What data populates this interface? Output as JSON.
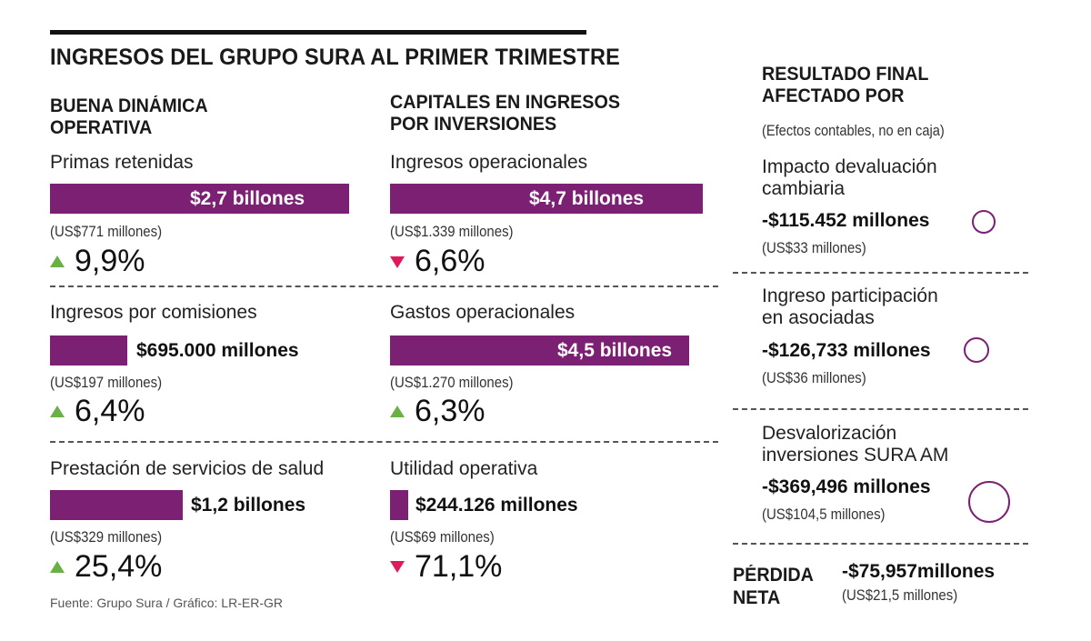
{
  "title": "INGRESOS DEL GRUPO SURA AL PRIMER TRIMESTRE",
  "sections": {
    "left": {
      "heading": [
        "BUENA DINÁMICA",
        "OPERATIVA"
      ]
    },
    "middle": {
      "heading": [
        "CAPITALES EN INGRESOS",
        "POR INVERSIONES"
      ]
    },
    "right": {
      "heading": [
        "RESULTADO FINAL",
        "AFECTADO POR"
      ],
      "note": "(Efectos contables, no en caja)"
    }
  },
  "metrics": {
    "primas": {
      "label": "Primas retenidas",
      "value": "$2,7 billones",
      "usd": "(US$771 millones)",
      "change": "9,9%",
      "direction": "up"
    },
    "comisiones": {
      "label": "Ingresos por comisiones",
      "value": "$695.000 millones",
      "usd": "(US$197 millones)",
      "change": "6,4%",
      "direction": "up"
    },
    "salud": {
      "label": "Prestación de servicios de salud",
      "value": "$1,2 billones",
      "usd": "(US$329 millones)",
      "change": "25,4%",
      "direction": "up"
    },
    "ing_op": {
      "label": "Ingresos operacionales",
      "value": "$4,7 billones",
      "usd": "(US$1.339 millones)",
      "change": "6,6%",
      "direction": "down"
    },
    "gastos_op": {
      "label": "Gastos operacionales",
      "value": "$4,5 billones",
      "usd": "(US$1.270 millones)",
      "change": "6,3%",
      "direction": "up"
    },
    "util_op": {
      "label": "Utilidad operativa",
      "value": "$244.126 millones",
      "usd": "(US$69 millones)",
      "change": "71,1%",
      "direction": "down"
    }
  },
  "impacts": {
    "devaluacion": {
      "label": [
        "Impacto devaluación",
        "cambiaria"
      ],
      "value": "-$115.452 millones",
      "usd": "(US$33 millones)"
    },
    "asociadas": {
      "label": [
        "Ingreso participación",
        "en asociadas"
      ],
      "value": "-$126,733 millones",
      "usd": "(US$36 millones)"
    },
    "sura_am": {
      "label": [
        "Desvalorización",
        "inversiones SURA AM"
      ],
      "value": "-$369,496 millones",
      "usd": "(US$104,5 millones)"
    }
  },
  "perdida": {
    "label": [
      "PÉRDIDA",
      "NETA"
    ],
    "value": "-$75,957millones",
    "usd": "(US$21,5 millones)"
  },
  "source": "Fuente: Grupo Sura / Gráfico: LR-ER-GR",
  "colors": {
    "bar": "#7b2072",
    "up_arrow": "#6ab045",
    "down_arrow": "#e0195d",
    "circle": "#7b2072"
  },
  "chart_data": {
    "type": "bar",
    "title": "INGRESOS DEL GRUPO SURA AL PRIMER TRIMESTRE",
    "unit": "millones de pesos",
    "categories": [
      "Primas retenidas",
      "Ingresos por comisiones",
      "Prestación de servicios de salud",
      "Ingresos operacionales",
      "Gastos operacionales",
      "Utilidad operativa"
    ],
    "values": [
      2700000,
      695000,
      1200000,
      4700000,
      4500000,
      244126
    ],
    "usd_millions": [
      771,
      197,
      329,
      1339,
      1270,
      69
    ],
    "change_pct": [
      9.9,
      6.4,
      25.4,
      -6.6,
      6.3,
      -71.1
    ],
    "circles": {
      "categories": [
        "Impacto devaluación cambiaria",
        "Ingreso participación en asociadas",
        "Desvalorización inversiones SURA AM"
      ],
      "values": [
        -115452,
        -126733,
        -369496
      ]
    }
  }
}
